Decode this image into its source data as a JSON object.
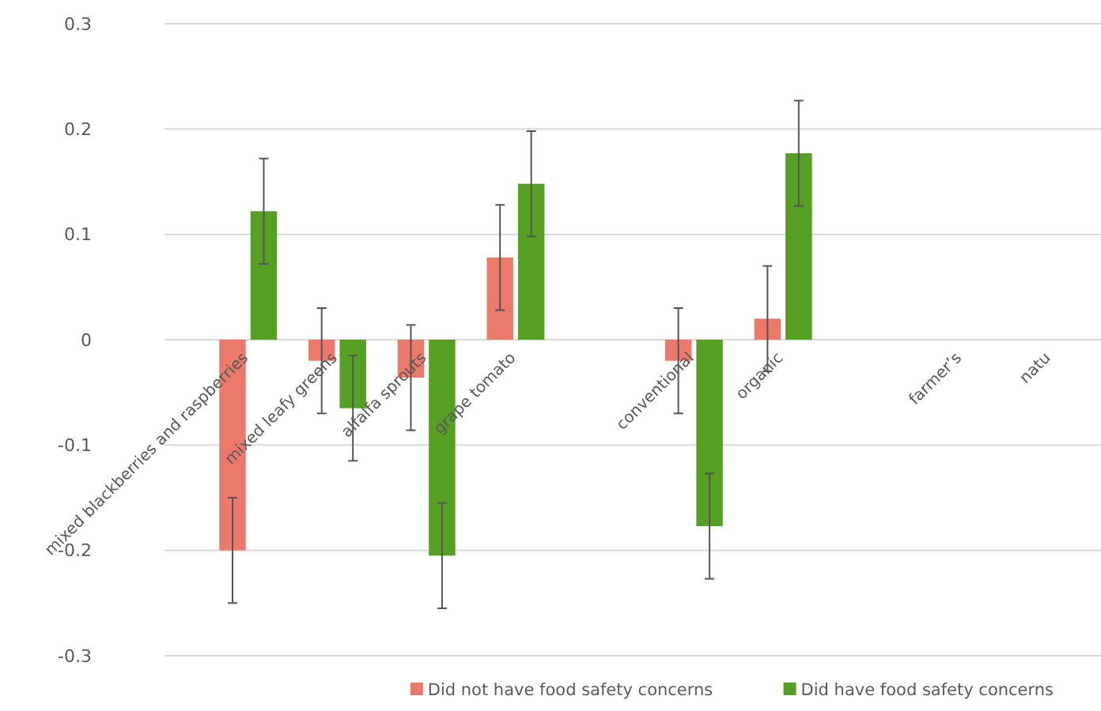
{
  "chart_data": {
    "type": "bar",
    "categories": [
      "mixed blackberries and raspberries",
      "mixed leafy greens",
      "alfalfa sprouts",
      "grape tomato",
      null,
      "conventional",
      "organic",
      null,
      "farmer’s",
      "natu"
    ],
    "series": [
      {
        "name": "Did not have food safety concerns",
        "color": "#ec7a6a",
        "values": [
          -0.2,
          -0.02,
          -0.036,
          0.078,
          null,
          -0.02,
          0.02,
          null,
          null,
          null
        ],
        "errors": [
          0.05,
          0.05,
          0.05,
          0.05,
          null,
          0.05,
          0.05,
          null,
          null,
          null
        ]
      },
      {
        "name": "Did have food safety concerns",
        "color": "#55a022",
        "values": [
          0.122,
          -0.065,
          -0.205,
          0.148,
          null,
          -0.177,
          0.177,
          null,
          null,
          null
        ],
        "errors": [
          0.05,
          0.05,
          0.05,
          0.05,
          null,
          0.05,
          0.05,
          null,
          null,
          null
        ]
      }
    ],
    "ylim": [
      -0.3,
      0.3
    ],
    "yticks": [
      {
        "value": -0.3,
        "label": "-0.3"
      },
      {
        "value": -0.2,
        "label": "-0.2"
      },
      {
        "value": -0.1,
        "label": "-0.1"
      },
      0,
      0.1,
      0.2,
      0.3
    ],
    "grid": "y",
    "legend": "bottom right"
  }
}
